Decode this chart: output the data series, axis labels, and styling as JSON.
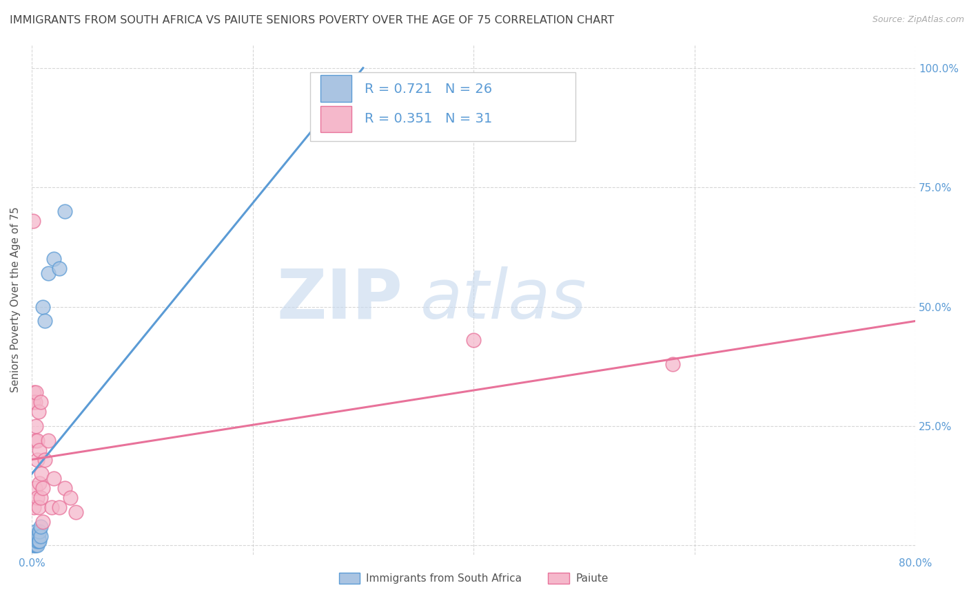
{
  "title": "IMMIGRANTS FROM SOUTH AFRICA VS PAIUTE SENIORS POVERTY OVER THE AGE OF 75 CORRELATION CHART",
  "source": "Source: ZipAtlas.com",
  "ylabel": "Seniors Poverty Over the Age of 75",
  "legend_r1": "R = 0.721",
  "legend_n1": "N = 26",
  "legend_r2": "R = 0.351",
  "legend_n2": "N = 31",
  "series1_name": "Immigrants from South Africa",
  "series2_name": "Paiute",
  "color1": "#aac4e2",
  "color2": "#f5b8cb",
  "line_color1": "#5b9bd5",
  "line_color2": "#e8729a",
  "tick_color": "#5b9bd5",
  "xlim": [
    0.0,
    0.8
  ],
  "ylim": [
    -0.02,
    1.05
  ],
  "xticks": [
    0.0,
    0.2,
    0.4,
    0.6,
    0.8
  ],
  "xtick_labels": [
    "0.0%",
    "",
    "",
    "",
    "80.0%"
  ],
  "ytick_positions": [
    0.0,
    0.25,
    0.5,
    0.75,
    1.0
  ],
  "ytick_labels": [
    "",
    "25.0%",
    "50.0%",
    "75.0%",
    "100.0%"
  ],
  "scatter1_x": [
    0.001,
    0.001,
    0.002,
    0.002,
    0.002,
    0.003,
    0.003,
    0.003,
    0.004,
    0.004,
    0.004,
    0.005,
    0.005,
    0.005,
    0.006,
    0.006,
    0.007,
    0.007,
    0.008,
    0.008,
    0.01,
    0.012,
    0.015,
    0.02,
    0.025,
    0.03
  ],
  "scatter1_y": [
    0.0,
    0.01,
    0.0,
    0.01,
    0.02,
    0.0,
    0.01,
    0.02,
    0.0,
    0.01,
    0.03,
    0.0,
    0.01,
    0.02,
    0.01,
    0.02,
    0.01,
    0.03,
    0.02,
    0.04,
    0.5,
    0.47,
    0.57,
    0.6,
    0.58,
    0.7
  ],
  "scatter2_x": [
    0.001,
    0.001,
    0.002,
    0.002,
    0.003,
    0.003,
    0.003,
    0.004,
    0.004,
    0.005,
    0.005,
    0.005,
    0.006,
    0.006,
    0.007,
    0.007,
    0.008,
    0.008,
    0.009,
    0.01,
    0.01,
    0.012,
    0.015,
    0.018,
    0.02,
    0.025,
    0.03,
    0.035,
    0.04,
    0.4,
    0.58
  ],
  "scatter2_y": [
    0.68,
    0.3,
    0.32,
    0.08,
    0.3,
    0.12,
    0.22,
    0.25,
    0.32,
    0.18,
    0.22,
    0.1,
    0.28,
    0.08,
    0.2,
    0.13,
    0.3,
    0.1,
    0.15,
    0.05,
    0.12,
    0.18,
    0.22,
    0.08,
    0.14,
    0.08,
    0.12,
    0.1,
    0.07,
    0.43,
    0.38
  ],
  "trendline1_x": [
    0.0,
    0.3
  ],
  "trendline1_y": [
    0.15,
    1.0
  ],
  "trendline2_x": [
    0.0,
    0.8
  ],
  "trendline2_y": [
    0.18,
    0.47
  ],
  "watermark_zip": "ZIP",
  "watermark_atlas": "atlas",
  "background_color": "#ffffff",
  "grid_color": "#cccccc",
  "title_fontsize": 11.5,
  "axis_label_fontsize": 11,
  "tick_fontsize": 11,
  "legend_fontsize": 14
}
